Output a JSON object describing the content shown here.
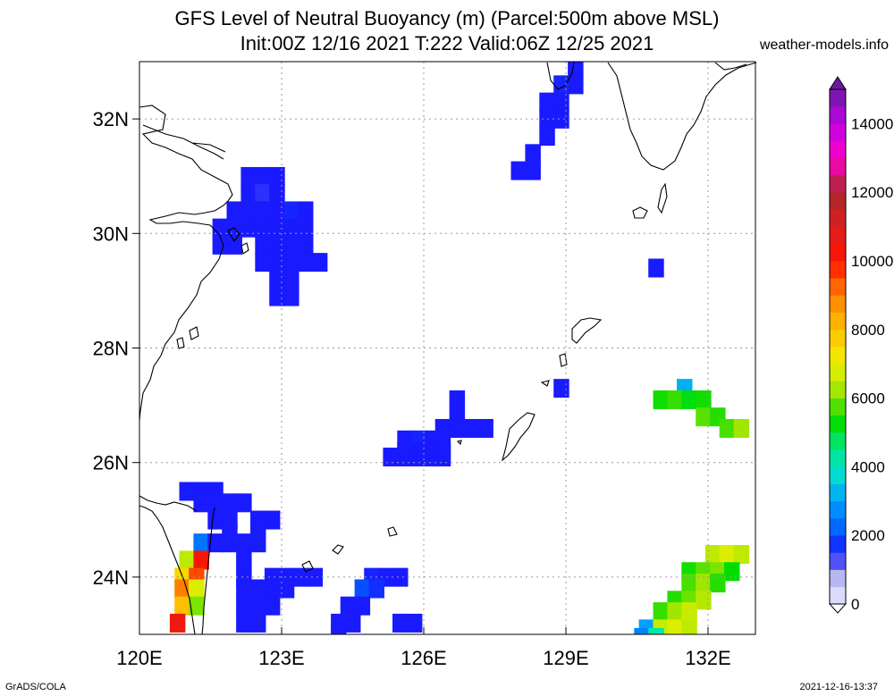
{
  "header": {
    "title_line1": "GFS Level of Neutral Buoyancy (m) (Parcel:500m above MSL)",
    "title_line2": "Init:00Z 12/16 2021 T:222 Valid:06Z 12/25 2021",
    "site": "weather-models.info"
  },
  "footer": {
    "left": "GrADS/COLA",
    "right": "2021-12-16-13:37"
  },
  "chart_data": {
    "type": "heatmap",
    "title": "GFS Level of Neutral Buoyancy (m) (Parcel:500m above MSL)",
    "subtitle": "Init:00Z 12/16 2021 T:222 Valid:06Z 12/25 2021",
    "units": "m",
    "xlim": [
      120,
      133
    ],
    "ylim": [
      23,
      33
    ],
    "grid": true,
    "x_ticks": [
      {
        "value": 120,
        "label": "120E"
      },
      {
        "value": 123,
        "label": "123E"
      },
      {
        "value": 126,
        "label": "126E"
      },
      {
        "value": 129,
        "label": "129E"
      },
      {
        "value": 132,
        "label": "132E"
      }
    ],
    "y_ticks": [
      {
        "value": 24,
        "label": "24N"
      },
      {
        "value": 26,
        "label": "26N"
      },
      {
        "value": 28,
        "label": "28N"
      },
      {
        "value": 30,
        "label": "30N"
      },
      {
        "value": 32,
        "label": "32N"
      }
    ],
    "colorbar": {
      "min": 0,
      "max": 15000,
      "labels": [
        "0",
        "2000",
        "4000",
        "6000",
        "8000",
        "10000",
        "12000",
        "14000"
      ],
      "label_values": [
        0,
        2000,
        4000,
        6000,
        8000,
        10000,
        12000,
        14000
      ],
      "stops": [
        {
          "value": 0,
          "color": "#ebebff"
        },
        {
          "value": 800,
          "color": "#b3b3f0"
        },
        {
          "value": 1500,
          "color": "#1a1aff"
        },
        {
          "value": 2200,
          "color": "#0064ff"
        },
        {
          "value": 3000,
          "color": "#00a0ff"
        },
        {
          "value": 3800,
          "color": "#00e0d0"
        },
        {
          "value": 4500,
          "color": "#00e890"
        },
        {
          "value": 5300,
          "color": "#00dc00"
        },
        {
          "value": 6200,
          "color": "#a0e600"
        },
        {
          "value": 7000,
          "color": "#f0f000"
        },
        {
          "value": 8000,
          "color": "#ffc000"
        },
        {
          "value": 9000,
          "color": "#ff8000"
        },
        {
          "value": 10000,
          "color": "#ff1400"
        },
        {
          "value": 11000,
          "color": "#dc1e1e"
        },
        {
          "value": 12000,
          "color": "#a82a2a"
        },
        {
          "value": 13000,
          "color": "#ff00c8"
        },
        {
          "value": 14000,
          "color": "#c000e6"
        },
        {
          "value": 15000,
          "color": "#6a1aa0"
        }
      ]
    },
    "cells": [
      {
        "lon": 122.3,
        "lat": 31.0,
        "value": 1500
      },
      {
        "lon": 122.6,
        "lat": 31.0,
        "value": 1500
      },
      {
        "lon": 122.9,
        "lat": 31.0,
        "value": 1500
      },
      {
        "lon": 122.3,
        "lat": 30.7,
        "value": 1500
      },
      {
        "lon": 122.6,
        "lat": 30.7,
        "value": 1400
      },
      {
        "lon": 122.9,
        "lat": 30.7,
        "value": 1500
      },
      {
        "lon": 122.0,
        "lat": 30.4,
        "value": 1500
      },
      {
        "lon": 122.3,
        "lat": 30.4,
        "value": 1500
      },
      {
        "lon": 122.6,
        "lat": 30.4,
        "value": 1500
      },
      {
        "lon": 122.9,
        "lat": 30.4,
        "value": 1500
      },
      {
        "lon": 123.2,
        "lat": 30.4,
        "value": 1600
      },
      {
        "lon": 123.5,
        "lat": 30.4,
        "value": 1500
      },
      {
        "lon": 121.7,
        "lat": 30.1,
        "value": 1500
      },
      {
        "lon": 122.0,
        "lat": 30.1,
        "value": 1500
      },
      {
        "lon": 122.3,
        "lat": 30.1,
        "value": 1500
      },
      {
        "lon": 122.6,
        "lat": 30.1,
        "value": 1500
      },
      {
        "lon": 122.9,
        "lat": 30.1,
        "value": 1500
      },
      {
        "lon": 123.2,
        "lat": 30.1,
        "value": 1500
      },
      {
        "lon": 123.5,
        "lat": 30.1,
        "value": 1500
      },
      {
        "lon": 121.7,
        "lat": 29.8,
        "value": 1500
      },
      {
        "lon": 122.0,
        "lat": 29.8,
        "value": 1500
      },
      {
        "lon": 122.6,
        "lat": 29.8,
        "value": 1500
      },
      {
        "lon": 122.9,
        "lat": 29.8,
        "value": 1500
      },
      {
        "lon": 123.2,
        "lat": 29.8,
        "value": 1500
      },
      {
        "lon": 123.5,
        "lat": 29.8,
        "value": 1500
      },
      {
        "lon": 122.6,
        "lat": 29.5,
        "value": 1500
      },
      {
        "lon": 122.9,
        "lat": 29.5,
        "value": 1500
      },
      {
        "lon": 123.2,
        "lat": 29.5,
        "value": 1500
      },
      {
        "lon": 123.5,
        "lat": 29.5,
        "value": 1500
      },
      {
        "lon": 123.8,
        "lat": 29.5,
        "value": 1500
      },
      {
        "lon": 122.9,
        "lat": 29.2,
        "value": 1500
      },
      {
        "lon": 123.2,
        "lat": 29.2,
        "value": 1500
      },
      {
        "lon": 122.9,
        "lat": 28.9,
        "value": 1500
      },
      {
        "lon": 123.2,
        "lat": 28.9,
        "value": 1500
      },
      {
        "lon": 129.2,
        "lat": 32.9,
        "value": 1500
      },
      {
        "lon": 128.9,
        "lat": 32.6,
        "value": 1600
      },
      {
        "lon": 129.2,
        "lat": 32.6,
        "value": 1500
      },
      {
        "lon": 128.6,
        "lat": 32.3,
        "value": 1500
      },
      {
        "lon": 128.9,
        "lat": 32.3,
        "value": 1500
      },
      {
        "lon": 128.6,
        "lat": 32.0,
        "value": 1500
      },
      {
        "lon": 128.9,
        "lat": 32.0,
        "value": 1500
      },
      {
        "lon": 128.6,
        "lat": 31.7,
        "value": 1500
      },
      {
        "lon": 128.3,
        "lat": 31.4,
        "value": 1500
      },
      {
        "lon": 128.0,
        "lat": 31.1,
        "value": 1500
      },
      {
        "lon": 128.3,
        "lat": 31.1,
        "value": 1500
      },
      {
        "lon": 130.9,
        "lat": 29.4,
        "value": 1500
      },
      {
        "lon": 128.9,
        "lat": 27.3,
        "value": 1500
      },
      {
        "lon": 126.7,
        "lat": 27.1,
        "value": 1500
      },
      {
        "lon": 126.7,
        "lat": 26.8,
        "value": 1500
      },
      {
        "lon": 126.4,
        "lat": 26.6,
        "value": 1500
      },
      {
        "lon": 126.7,
        "lat": 26.6,
        "value": 1500
      },
      {
        "lon": 127.0,
        "lat": 26.6,
        "value": 1500
      },
      {
        "lon": 127.3,
        "lat": 26.6,
        "value": 1500
      },
      {
        "lon": 125.6,
        "lat": 26.4,
        "value": 1500
      },
      {
        "lon": 125.9,
        "lat": 26.4,
        "value": 1600
      },
      {
        "lon": 126.2,
        "lat": 26.4,
        "value": 1500
      },
      {
        "lon": 126.4,
        "lat": 26.4,
        "value": 1500
      },
      {
        "lon": 125.6,
        "lat": 26.2,
        "value": 1500
      },
      {
        "lon": 125.9,
        "lat": 26.2,
        "value": 1500
      },
      {
        "lon": 126.2,
        "lat": 26.2,
        "value": 1500
      },
      {
        "lon": 126.4,
        "lat": 26.2,
        "value": 1500
      },
      {
        "lon": 125.3,
        "lat": 26.1,
        "value": 1500
      },
      {
        "lon": 125.6,
        "lat": 26.1,
        "value": 1500
      },
      {
        "lon": 125.9,
        "lat": 26.1,
        "value": 1500
      },
      {
        "lon": 126.2,
        "lat": 26.1,
        "value": 1500
      },
      {
        "lon": 126.4,
        "lat": 26.1,
        "value": 1500
      },
      {
        "lon": 121.0,
        "lat": 25.5,
        "value": 1500
      },
      {
        "lon": 121.3,
        "lat": 25.5,
        "value": 1500
      },
      {
        "lon": 121.6,
        "lat": 25.5,
        "value": 1500
      },
      {
        "lon": 121.3,
        "lat": 25.3,
        "value": 1500
      },
      {
        "lon": 121.6,
        "lat": 25.3,
        "value": 1500
      },
      {
        "lon": 121.9,
        "lat": 25.3,
        "value": 1500
      },
      {
        "lon": 122.2,
        "lat": 25.3,
        "value": 1500
      },
      {
        "lon": 121.6,
        "lat": 25.0,
        "value": 1500
      },
      {
        "lon": 121.9,
        "lat": 25.0,
        "value": 1500
      },
      {
        "lon": 122.5,
        "lat": 25.0,
        "value": 1500
      },
      {
        "lon": 122.8,
        "lat": 25.0,
        "value": 1500
      },
      {
        "lon": 121.9,
        "lat": 24.8,
        "value": 1500
      },
      {
        "lon": 122.5,
        "lat": 24.8,
        "value": 1500
      },
      {
        "lon": 121.3,
        "lat": 24.6,
        "value": 2400
      },
      {
        "lon": 121.6,
        "lat": 24.6,
        "value": 1500
      },
      {
        "lon": 121.9,
        "lat": 24.6,
        "value": 1500
      },
      {
        "lon": 122.2,
        "lat": 24.6,
        "value": 1500
      },
      {
        "lon": 122.5,
        "lat": 24.6,
        "value": 1500
      },
      {
        "lon": 121.0,
        "lat": 24.3,
        "value": 6500
      },
      {
        "lon": 121.3,
        "lat": 24.3,
        "value": 10200
      },
      {
        "lon": 122.2,
        "lat": 24.3,
        "value": 1500
      },
      {
        "lon": 120.9,
        "lat": 24.0,
        "value": 7500
      },
      {
        "lon": 121.2,
        "lat": 24.0,
        "value": 9500
      },
      {
        "lon": 122.2,
        "lat": 24.0,
        "value": 1500
      },
      {
        "lon": 122.8,
        "lat": 24.0,
        "value": 1500
      },
      {
        "lon": 123.1,
        "lat": 24.0,
        "value": 1500
      },
      {
        "lon": 123.4,
        "lat": 24.0,
        "value": 1500
      },
      {
        "lon": 123.7,
        "lat": 24.0,
        "value": 1500
      },
      {
        "lon": 120.9,
        "lat": 23.8,
        "value": 9000
      },
      {
        "lon": 121.2,
        "lat": 23.8,
        "value": 6800
      },
      {
        "lon": 122.2,
        "lat": 23.8,
        "value": 1500
      },
      {
        "lon": 122.5,
        "lat": 23.8,
        "value": 1500
      },
      {
        "lon": 122.8,
        "lat": 23.8,
        "value": 1500
      },
      {
        "lon": 123.1,
        "lat": 23.8,
        "value": 1500
      },
      {
        "lon": 120.9,
        "lat": 23.5,
        "value": 8000
      },
      {
        "lon": 121.2,
        "lat": 23.5,
        "value": 6000
      },
      {
        "lon": 122.2,
        "lat": 23.5,
        "value": 1500
      },
      {
        "lon": 122.5,
        "lat": 23.5,
        "value": 1500
      },
      {
        "lon": 122.8,
        "lat": 23.5,
        "value": 1500
      },
      {
        "lon": 120.8,
        "lat": 23.2,
        "value": 10500
      },
      {
        "lon": 122.2,
        "lat": 23.2,
        "value": 1500
      },
      {
        "lon": 122.5,
        "lat": 23.2,
        "value": 1500
      },
      {
        "lon": 124.9,
        "lat": 24.0,
        "value": 1600
      },
      {
        "lon": 125.2,
        "lat": 24.0,
        "value": 1500
      },
      {
        "lon": 125.5,
        "lat": 24.0,
        "value": 1500
      },
      {
        "lon": 124.7,
        "lat": 23.8,
        "value": 2000
      },
      {
        "lon": 125.0,
        "lat": 23.8,
        "value": 1700
      },
      {
        "lon": 124.4,
        "lat": 23.5,
        "value": 1500
      },
      {
        "lon": 124.7,
        "lat": 23.5,
        "value": 1500
      },
      {
        "lon": 124.2,
        "lat": 23.2,
        "value": 1500
      },
      {
        "lon": 124.5,
        "lat": 23.2,
        "value": 1500
      },
      {
        "lon": 124.2,
        "lat": 23.0,
        "value": 1500
      },
      {
        "lon": 125.5,
        "lat": 23.2,
        "value": 1500
      },
      {
        "lon": 125.8,
        "lat": 23.2,
        "value": 1500
      },
      {
        "lon": 131.5,
        "lat": 27.3,
        "value": 3200
      },
      {
        "lon": 131.0,
        "lat": 27.1,
        "value": 5400
      },
      {
        "lon": 131.3,
        "lat": 27.1,
        "value": 5600
      },
      {
        "lon": 131.6,
        "lat": 27.1,
        "value": 5200
      },
      {
        "lon": 131.9,
        "lat": 27.1,
        "value": 5400
      },
      {
        "lon": 131.9,
        "lat": 26.8,
        "value": 5800
      },
      {
        "lon": 132.2,
        "lat": 26.8,
        "value": 5500
      },
      {
        "lon": 132.4,
        "lat": 26.6,
        "value": 5700
      },
      {
        "lon": 132.7,
        "lat": 26.6,
        "value": 6200
      },
      {
        "lon": 132.1,
        "lat": 24.4,
        "value": 6500
      },
      {
        "lon": 132.4,
        "lat": 24.4,
        "value": 6800
      },
      {
        "lon": 132.7,
        "lat": 24.4,
        "value": 6500
      },
      {
        "lon": 131.6,
        "lat": 24.1,
        "value": 5400
      },
      {
        "lon": 131.9,
        "lat": 24.1,
        "value": 5800
      },
      {
        "lon": 132.2,
        "lat": 24.1,
        "value": 6000
      },
      {
        "lon": 132.5,
        "lat": 24.1,
        "value": 5300
      },
      {
        "lon": 131.6,
        "lat": 23.9,
        "value": 5700
      },
      {
        "lon": 131.9,
        "lat": 23.9,
        "value": 6200
      },
      {
        "lon": 132.2,
        "lat": 23.9,
        "value": 5500
      },
      {
        "lon": 131.3,
        "lat": 23.6,
        "value": 5500
      },
      {
        "lon": 131.6,
        "lat": 23.6,
        "value": 5900
      },
      {
        "lon": 131.9,
        "lat": 23.6,
        "value": 6400
      },
      {
        "lon": 131.0,
        "lat": 23.4,
        "value": 5600
      },
      {
        "lon": 131.3,
        "lat": 23.4,
        "value": 6200
      },
      {
        "lon": 131.6,
        "lat": 23.4,
        "value": 6600
      },
      {
        "lon": 130.7,
        "lat": 23.1,
        "value": 3000
      },
      {
        "lon": 131.0,
        "lat": 23.1,
        "value": 6600
      },
      {
        "lon": 131.3,
        "lat": 23.1,
        "value": 6800
      },
      {
        "lon": 131.6,
        "lat": 23.1,
        "value": 6500
      },
      {
        "lon": 130.6,
        "lat": 22.95,
        "value": 2600
      },
      {
        "lon": 130.9,
        "lat": 22.95,
        "value": 4200
      }
    ]
  }
}
